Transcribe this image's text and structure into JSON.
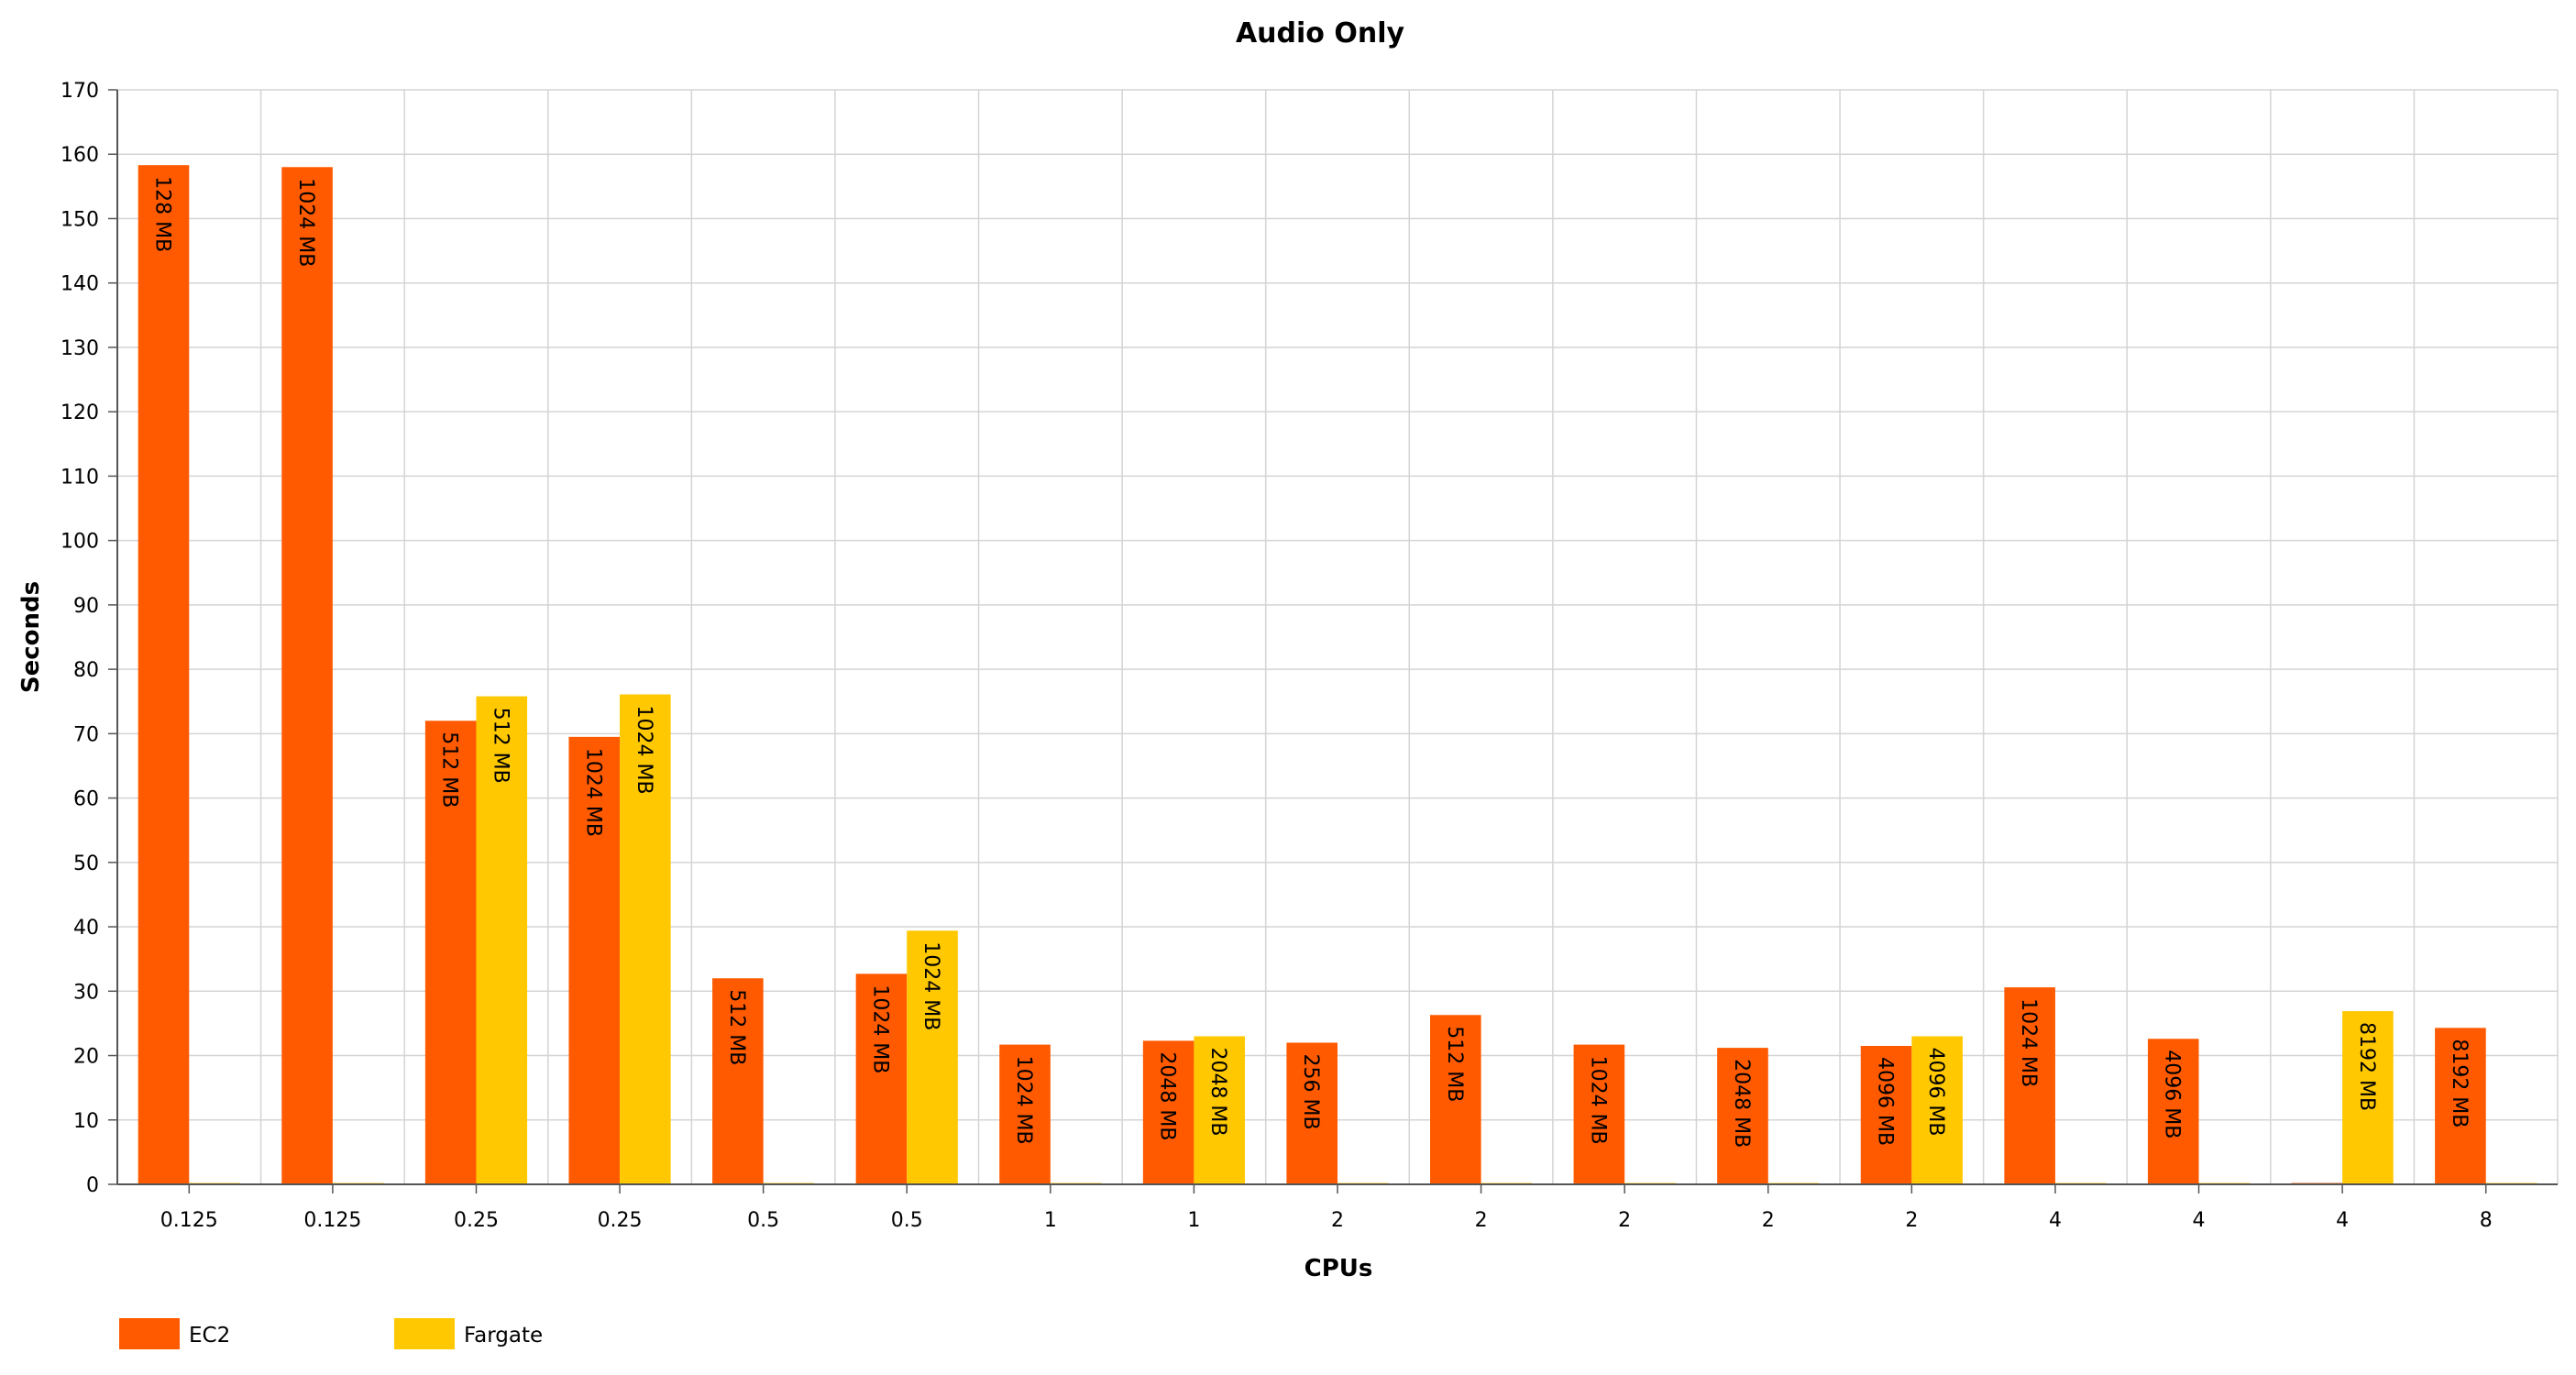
{
  "chart_data": {
    "type": "bar",
    "title": "Audio Only",
    "xlabel": "CPUs",
    "ylabel": "Seconds",
    "ylim": [
      0,
      170
    ],
    "ytick_step": 10,
    "grid": true,
    "legend_position": "bottom-left",
    "categories": [
      "0.125",
      "0.125",
      "0.25",
      "0.25",
      "0.5",
      "0.5",
      "1",
      "1",
      "2",
      "2",
      "2",
      "2",
      "2",
      "4",
      "4",
      "4",
      "8"
    ],
    "series": [
      {
        "name": "EC2",
        "color": "#ff5a00",
        "values": [
          158.3,
          158.0,
          72.0,
          69.5,
          32.0,
          32.7,
          21.7,
          22.3,
          22.0,
          26.3,
          21.7,
          21.2,
          21.5,
          30.6,
          22.6,
          0,
          24.3
        ],
        "labels": [
          "128 MB",
          "1024 MB",
          "512 MB",
          "1024 MB",
          "512 MB",
          "1024 MB",
          "1024 MB",
          "2048 MB",
          "256 MB",
          "512 MB",
          "1024 MB",
          "2048 MB",
          "4096 MB",
          "1024 MB",
          "4096 MB",
          "",
          "8192 MB"
        ]
      },
      {
        "name": "Fargate",
        "color": "#ffc800",
        "values": [
          0,
          0,
          75.8,
          76.1,
          0,
          39.4,
          0,
          23.0,
          0,
          0,
          0,
          0,
          23.0,
          0,
          0,
          26.9,
          0
        ],
        "labels": [
          "",
          "",
          "512 MB",
          "1024 MB",
          "",
          "1024 MB",
          "",
          "2048 MB",
          "",
          "",
          "",
          "",
          "4096 MB",
          "",
          "",
          "8192 MB",
          ""
        ]
      }
    ]
  }
}
